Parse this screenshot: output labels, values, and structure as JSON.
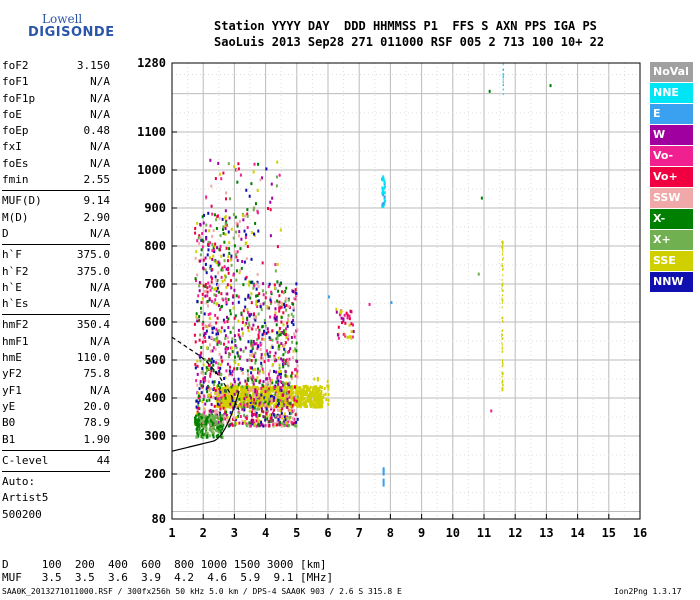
{
  "logo": {
    "line1": "Lowell",
    "line2": "DIGISONDE"
  },
  "header": {
    "labels": "Station YYYY DAY  DDD HHMMSS P1  FFS S AXN PPS IGA PS",
    "values": "SaoLuis 2013 Sep28 271 011000 RSF 005 2 713 100 10+ 22"
  },
  "params": [
    {
      "name": "foF2",
      "value": "3.150"
    },
    {
      "name": "foF1",
      "value": "N/A"
    },
    {
      "name": "foF1p",
      "value": "N/A"
    },
    {
      "name": "foE",
      "value": "N/A"
    },
    {
      "name": "foEp",
      "value": "0.48"
    },
    {
      "name": "fxI",
      "value": "N/A"
    },
    {
      "name": "foEs",
      "value": "N/A"
    },
    {
      "name": "fmin",
      "value": "2.55"
    },
    {
      "sep": true
    },
    {
      "name": "MUF(D)",
      "value": "9.14"
    },
    {
      "name": "M(D)",
      "value": "2.90"
    },
    {
      "name": "D",
      "value": "N/A"
    },
    {
      "sep": true
    },
    {
      "name": "h`F",
      "value": "375.0"
    },
    {
      "name": "h`F2",
      "value": "375.0"
    },
    {
      "name": "h`E",
      "value": "N/A"
    },
    {
      "name": "h`Es",
      "value": "N/A"
    },
    {
      "sep": true
    },
    {
      "name": "hmF2",
      "value": "350.4"
    },
    {
      "name": "hmF1",
      "value": "N/A"
    },
    {
      "name": "hmE",
      "value": "110.0"
    },
    {
      "name": "yF2",
      "value": "75.8"
    },
    {
      "name": "yF1",
      "value": "N/A"
    },
    {
      "name": "yE",
      "value": "20.0"
    },
    {
      "name": "B0",
      "value": "78.9"
    },
    {
      "name": "B1",
      "value": "1.90"
    },
    {
      "sep": true
    },
    {
      "name": "C-level",
      "value": "44"
    },
    {
      "sep": true
    },
    {
      "name": "Auto:",
      "value": ""
    },
    {
      "name": "Artist5",
      "value": ""
    },
    {
      "name": "500200",
      "value": ""
    }
  ],
  "legend": [
    {
      "label": "NoVal",
      "color": "#a0a0a0"
    },
    {
      "label": "NNE",
      "color": "#00e5f5"
    },
    {
      "label": "E",
      "color": "#3aa0f0"
    },
    {
      "label": "W",
      "color": "#a000a0"
    },
    {
      "label": "Vo-",
      "color": "#f02090"
    },
    {
      "label": "Vo+",
      "color": "#f00040"
    },
    {
      "label": "SSW",
      "color": "#f0a8a8"
    },
    {
      "label": "X-",
      "color": "#008000"
    },
    {
      "label": "X+",
      "color": "#70b050"
    },
    {
      "label": "SSE",
      "color": "#d0d000"
    },
    {
      "label": "NNW",
      "color": "#1010b0"
    }
  ],
  "axes": {
    "x_ticks": [
      "1",
      "2",
      "3",
      "4",
      "5",
      "6",
      "7",
      "8",
      "9",
      "10",
      "11",
      "12",
      "13",
      "14",
      "15",
      "16"
    ],
    "y_ticks": [
      "80",
      "200",
      "300",
      "400",
      "500",
      "600",
      "700",
      "800",
      "900",
      "1000",
      "1100",
      "1280"
    ],
    "x_range": [
      1,
      16
    ],
    "y_range": [
      80,
      1280
    ]
  },
  "footer": {
    "line1": "D     100  200  400  600  800 1000 1500 3000 [km]",
    "line2": "MUF   3.5  3.5  3.6  3.9  4.2  4.6  5.9  9.1 [MHz]",
    "line3": "SAA0K_2013271011000.RSF / 300fx256h 50 kHz 5.0 km / DPS-4 SAA0K 903 / 2.6 S 315.8 E",
    "version": "Ion2Png 1.3.17"
  }
}
